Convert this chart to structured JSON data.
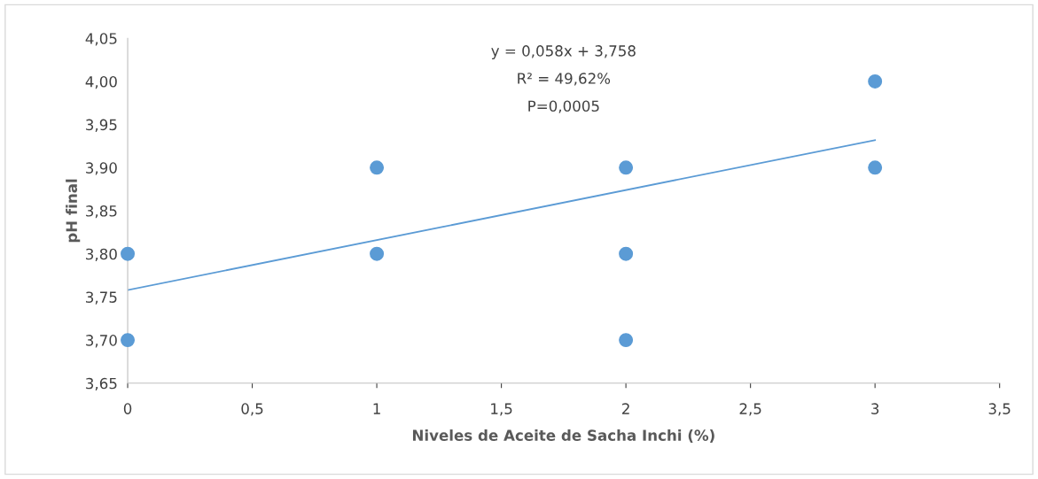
{
  "chart_data": {
    "type": "scatter",
    "xlabel": "Niveles de Aceite de Sacha Inchi (%)",
    "ylabel": "pH final",
    "annotations": [
      "y = 0,058x + 3,758",
      "R² = 49,62%",
      "P=0,0005"
    ],
    "series": [
      {
        "marker": "circle",
        "color": "#5b9bd5",
        "x": [
          0,
          0,
          1,
          1,
          2,
          2,
          2,
          3,
          3
        ],
        "values": [
          3.8,
          3.7,
          3.9,
          3.8,
          3.9,
          3.8,
          3.7,
          4.0,
          3.9
        ]
      },
      {
        "type": "line",
        "marker": "none",
        "color": "#5b9bd5",
        "x": [
          0,
          3
        ],
        "values": [
          3.758,
          3.932
        ]
      }
    ],
    "grid": false,
    "legend": false,
    "xlim": [
      0,
      3.5
    ],
    "xticks": [
      0,
      {
        "value": 0.5,
        "label": "0,5"
      },
      1,
      {
        "value": 1.5,
        "label": "1,5"
      },
      2,
      {
        "value": 2.5,
        "label": "2,5"
      },
      3,
      {
        "value": 3.5,
        "label": "3,5"
      }
    ],
    "ylim": [
      3.65,
      4.05
    ],
    "yticks": [
      {
        "value": 3.65,
        "label": "3,65"
      },
      {
        "value": 3.7,
        "label": "3,70"
      },
      {
        "value": 3.75,
        "label": "3,75"
      },
      {
        "value": 3.8,
        "label": "3,80"
      },
      {
        "value": 3.85,
        "label": "3,85"
      },
      {
        "value": 3.9,
        "label": "3,90"
      },
      {
        "value": 3.95,
        "label": "3,95"
      },
      {
        "value": 4.0,
        "label": "4,00"
      },
      {
        "value": 4.05,
        "label": "4,05"
      }
    ]
  }
}
